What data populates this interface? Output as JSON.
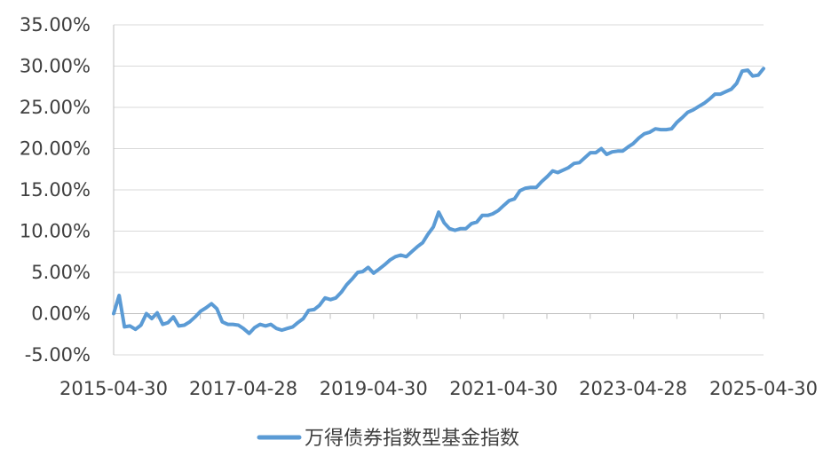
{
  "chart_data": {
    "type": "line",
    "title": "",
    "xlabel": "",
    "ylabel": "",
    "x_tick_labels": [
      "2015-04-30",
      "2017-04-28",
      "2019-04-30",
      "2021-04-30",
      "2023-04-28",
      "2025-04-30"
    ],
    "y_tick_labels": [
      "35.00%",
      "30.00%",
      "25.00%",
      "20.00%",
      "15.00%",
      "10.00%",
      "5.00%",
      "0.00%",
      "-5.00%"
    ],
    "ylim": [
      -5,
      35
    ],
    "xlim": [
      "2015-04-30",
      "2025-04-30"
    ],
    "grid": true,
    "legend_position": "bottom",
    "colors": {
      "line": "#5b9bd5",
      "grid": "#d9d9d9",
      "axis": "#bfbfbf",
      "text": "#404040"
    },
    "series": [
      {
        "name": "万得债券指数型基金指数",
        "points": [
          [
            "2015-04-30",
            0.0
          ],
          [
            "2015-05-31",
            2.2
          ],
          [
            "2015-06-30",
            -1.6
          ],
          [
            "2015-07-31",
            -1.5
          ],
          [
            "2015-08-31",
            -1.9
          ],
          [
            "2015-09-30",
            -1.4
          ],
          [
            "2015-10-31",
            0.0
          ],
          [
            "2015-11-30",
            -0.6
          ],
          [
            "2015-12-31",
            0.1
          ],
          [
            "2016-01-31",
            -1.3
          ],
          [
            "2016-02-29",
            -1.1
          ],
          [
            "2016-03-31",
            -0.4
          ],
          [
            "2016-04-30",
            -1.5
          ],
          [
            "2016-05-31",
            -1.4
          ],
          [
            "2016-06-30",
            -1.0
          ],
          [
            "2016-07-31",
            -0.4
          ],
          [
            "2016-08-31",
            0.3
          ],
          [
            "2016-09-30",
            0.7
          ],
          [
            "2016-10-31",
            1.2
          ],
          [
            "2016-11-30",
            0.6
          ],
          [
            "2016-12-31",
            -1.0
          ],
          [
            "2017-01-31",
            -1.3
          ],
          [
            "2017-02-28",
            -1.3
          ],
          [
            "2017-03-31",
            -1.4
          ],
          [
            "2017-04-28",
            -1.8
          ],
          [
            "2017-05-31",
            -2.4
          ],
          [
            "2017-06-30",
            -1.7
          ],
          [
            "2017-07-31",
            -1.3
          ],
          [
            "2017-08-31",
            -1.5
          ],
          [
            "2017-09-30",
            -1.3
          ],
          [
            "2017-10-31",
            -1.8
          ],
          [
            "2017-11-30",
            -2.0
          ],
          [
            "2017-12-31",
            -1.8
          ],
          [
            "2018-01-31",
            -1.6
          ],
          [
            "2018-02-28",
            -1.1
          ],
          [
            "2018-03-31",
            -0.6
          ],
          [
            "2018-04-30",
            0.4
          ],
          [
            "2018-05-31",
            0.5
          ],
          [
            "2018-06-30",
            1.0
          ],
          [
            "2018-07-31",
            1.9
          ],
          [
            "2018-08-31",
            1.7
          ],
          [
            "2018-09-30",
            1.9
          ],
          [
            "2018-10-31",
            2.6
          ],
          [
            "2018-11-30",
            3.5
          ],
          [
            "2018-12-31",
            4.2
          ],
          [
            "2019-01-31",
            5.0
          ],
          [
            "2019-02-28",
            5.1
          ],
          [
            "2019-03-31",
            5.6
          ],
          [
            "2019-04-30",
            4.9
          ],
          [
            "2019-05-31",
            5.4
          ],
          [
            "2019-06-30",
            5.9
          ],
          [
            "2019-07-31",
            6.5
          ],
          [
            "2019-08-31",
            6.9
          ],
          [
            "2019-09-30",
            7.1
          ],
          [
            "2019-10-31",
            6.9
          ],
          [
            "2019-11-30",
            7.5
          ],
          [
            "2019-12-31",
            8.1
          ],
          [
            "2020-01-31",
            8.6
          ],
          [
            "2020-02-29",
            9.6
          ],
          [
            "2020-03-31",
            10.5
          ],
          [
            "2020-04-30",
            12.3
          ],
          [
            "2020-05-31",
            11.0
          ],
          [
            "2020-06-30",
            10.3
          ],
          [
            "2020-07-31",
            10.1
          ],
          [
            "2020-08-31",
            10.3
          ],
          [
            "2020-09-30",
            10.3
          ],
          [
            "2020-10-31",
            10.9
          ],
          [
            "2020-11-30",
            11.1
          ],
          [
            "2020-12-31",
            11.9
          ],
          [
            "2021-01-31",
            11.9
          ],
          [
            "2021-02-28",
            12.1
          ],
          [
            "2021-03-31",
            12.5
          ],
          [
            "2021-04-30",
            13.1
          ],
          [
            "2021-05-31",
            13.7
          ],
          [
            "2021-06-30",
            13.9
          ],
          [
            "2021-07-31",
            14.9
          ],
          [
            "2021-08-31",
            15.2
          ],
          [
            "2021-09-30",
            15.3
          ],
          [
            "2021-10-31",
            15.3
          ],
          [
            "2021-11-30",
            16.0
          ],
          [
            "2021-12-31",
            16.6
          ],
          [
            "2022-01-31",
            17.3
          ],
          [
            "2022-02-28",
            17.1
          ],
          [
            "2022-03-31",
            17.4
          ],
          [
            "2022-04-30",
            17.7
          ],
          [
            "2022-05-31",
            18.2
          ],
          [
            "2022-06-30",
            18.3
          ],
          [
            "2022-07-31",
            18.9
          ],
          [
            "2022-08-31",
            19.5
          ],
          [
            "2022-09-30",
            19.5
          ],
          [
            "2022-10-31",
            20.0
          ],
          [
            "2022-11-30",
            19.3
          ],
          [
            "2022-12-31",
            19.6
          ],
          [
            "2023-01-31",
            19.7
          ],
          [
            "2023-02-28",
            19.7
          ],
          [
            "2023-03-31",
            20.2
          ],
          [
            "2023-04-28",
            20.6
          ],
          [
            "2023-05-31",
            21.3
          ],
          [
            "2023-06-30",
            21.8
          ],
          [
            "2023-07-31",
            22.0
          ],
          [
            "2023-08-31",
            22.4
          ],
          [
            "2023-09-30",
            22.3
          ],
          [
            "2023-10-31",
            22.3
          ],
          [
            "2023-11-30",
            22.4
          ],
          [
            "2023-12-31",
            23.2
          ],
          [
            "2024-01-31",
            23.8
          ],
          [
            "2024-02-29",
            24.4
          ],
          [
            "2024-03-31",
            24.7
          ],
          [
            "2024-04-30",
            25.1
          ],
          [
            "2024-05-31",
            25.5
          ],
          [
            "2024-06-30",
            26.0
          ],
          [
            "2024-07-31",
            26.6
          ],
          [
            "2024-08-31",
            26.6
          ],
          [
            "2024-09-30",
            26.9
          ],
          [
            "2024-10-31",
            27.2
          ],
          [
            "2024-11-30",
            27.9
          ],
          [
            "2024-12-31",
            29.4
          ],
          [
            "2025-01-31",
            29.5
          ],
          [
            "2025-02-28",
            28.8
          ],
          [
            "2025-03-31",
            28.9
          ],
          [
            "2025-04-30",
            29.7
          ]
        ]
      }
    ]
  }
}
